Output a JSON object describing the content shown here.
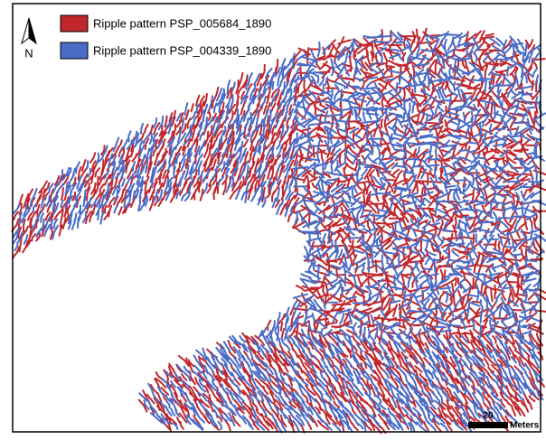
{
  "legend": [
    {
      "label": "Ripple pattern PSP_005684_1890",
      "color": "#c0272d"
    },
    {
      "label": "Ripple pattern PSP_004339_1890",
      "color": "#4a6cc6"
    }
  ],
  "north_arrow": {
    "label": "N"
  },
  "scale_bar": {
    "value": 20,
    "unit": "Meters"
  }
}
